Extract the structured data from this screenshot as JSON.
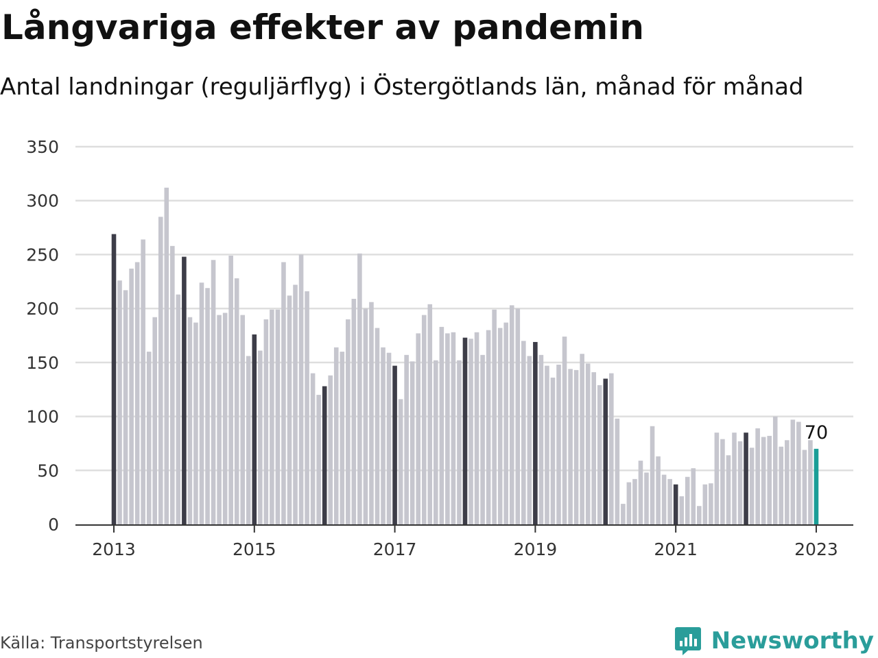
{
  "header": {
    "title": "Långvariga effekter av pandemin",
    "subtitle": "Antal landningar (reguljärflyg) i Östergötlands län, månad för månad"
  },
  "footer": {
    "source": "Källa: Transportstyrelsen",
    "brand": "Newsworthy"
  },
  "colors": {
    "bar_default": "#c6c6ce",
    "bar_january": "#3d3d48",
    "bar_latest": "#1a9e97",
    "grid": "#dedede",
    "axis": "#333333",
    "brand": "#2a9d9a"
  },
  "icons": {
    "brand_logo": "bar-chart-speech-bubble-icon"
  },
  "chart_data": {
    "type": "bar",
    "title": "",
    "xlabel": "",
    "ylabel": "",
    "ylim": [
      0,
      350
    ],
    "yticks": [
      0,
      50,
      100,
      150,
      200,
      250,
      300,
      350
    ],
    "xticks": [
      "2013",
      "2015",
      "2017",
      "2019",
      "2021",
      "2023"
    ],
    "grid": true,
    "start": "2013-01",
    "end": "2023-01",
    "highlight_january": true,
    "annotation": {
      "label": "70",
      "target": "2023-01"
    },
    "values": [
      269,
      226,
      217,
      237,
      243,
      264,
      160,
      192,
      285,
      312,
      258,
      213,
      248,
      192,
      187,
      224,
      219,
      245,
      194,
      196,
      249,
      228,
      194,
      156,
      176,
      161,
      190,
      199,
      199,
      243,
      212,
      222,
      250,
      216,
      140,
      120,
      128,
      138,
      164,
      160,
      190,
      209,
      251,
      200,
      206,
      182,
      164,
      159,
      147,
      116,
      157,
      151,
      177,
      194,
      204,
      152,
      183,
      177,
      178,
      152,
      173,
      172,
      178,
      157,
      180,
      199,
      182,
      187,
      203,
      200,
      170,
      156,
      169,
      157,
      147,
      136,
      148,
      174,
      144,
      143,
      158,
      149,
      141,
      129,
      135,
      140,
      98,
      19,
      39,
      42,
      59,
      48,
      91,
      63,
      46,
      42,
      37,
      26,
      44,
      52,
      17,
      37,
      38,
      85,
      79,
      64,
      85,
      77,
      85,
      71,
      89,
      81,
      82,
      100,
      72,
      78,
      97,
      95,
      69,
      78,
      70
    ]
  }
}
